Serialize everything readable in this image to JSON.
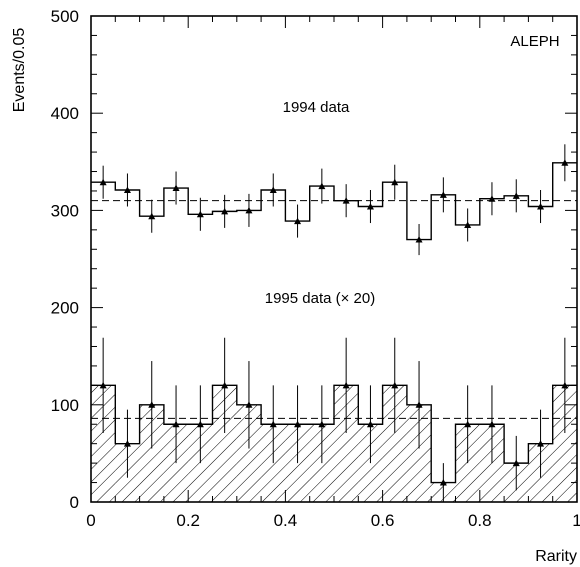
{
  "chart_data": {
    "type": "histogram",
    "xlabel": "Rarity",
    "ylabel": "Events/0.05",
    "xlim": [
      0,
      1
    ],
    "ylim": [
      0,
      500
    ],
    "x_ticks": [
      0,
      0.2,
      0.4,
      0.6,
      0.8,
      1
    ],
    "x_tick_labels": [
      "0",
      "0.2",
      "0.4",
      "0.6",
      "0.8",
      "1"
    ],
    "y_ticks": [
      0,
      100,
      200,
      300,
      400,
      500
    ],
    "y_tick_labels": [
      "0",
      "100",
      "200",
      "300",
      "400",
      "500"
    ],
    "bin_width": 0.05,
    "x": [
      0.025,
      0.075,
      0.125,
      0.175,
      0.225,
      0.275,
      0.325,
      0.375,
      0.425,
      0.475,
      0.525,
      0.575,
      0.625,
      0.675,
      0.725,
      0.775,
      0.825,
      0.875,
      0.925,
      0.975
    ],
    "grid": false,
    "annotations": {
      "experiment": "ALEPH",
      "label_1994": "1994 data",
      "label_1995": "1995 data (× 20)"
    },
    "series": [
      {
        "id": "data-1994",
        "values": [
          329,
          321,
          294,
          323,
          296,
          299,
          300,
          321,
          289,
          325,
          310,
          304,
          329,
          270,
          316,
          285,
          312,
          315,
          304,
          349
        ],
        "errors": [
          17,
          17,
          17,
          17,
          17,
          17,
          17,
          17,
          17,
          18,
          17,
          17,
          18,
          16,
          18,
          17,
          17,
          17,
          17,
          19
        ],
        "reference_level": 310,
        "hatched": false
      },
      {
        "id": "data-1995-x20",
        "values": [
          120,
          60,
          100,
          80,
          80,
          120,
          100,
          80,
          80,
          80,
          120,
          80,
          120,
          100,
          20,
          80,
          80,
          40,
          60,
          120
        ],
        "errors": [
          49,
          35,
          45,
          40,
          40,
          49,
          45,
          40,
          40,
          40,
          49,
          40,
          49,
          45,
          20,
          40,
          40,
          28,
          35,
          49
        ],
        "reference_level": 86,
        "hatched": true
      }
    ]
  }
}
